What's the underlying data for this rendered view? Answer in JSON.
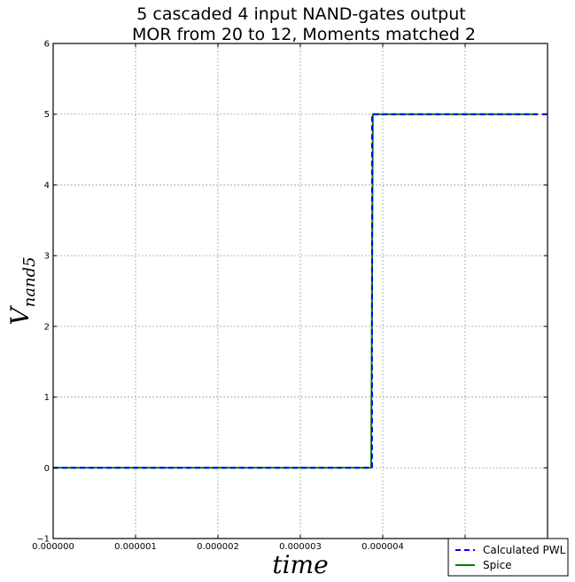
{
  "chart_data": {
    "type": "line",
    "title_line1": "5 cascaded 4 input NAND-gates     output",
    "title_line2": "MOR from 20 to 12, Moments matched 2",
    "xlabel": "time",
    "ylabel_main": "V",
    "ylabel_sub": "nand5",
    "xlim": [
      0,
      6e-06
    ],
    "ylim": [
      -1,
      6
    ],
    "x_ticks": [
      0,
      1e-06,
      2e-06,
      3e-06,
      4e-06,
      5e-06
    ],
    "x_tick_labels": [
      "0.000000",
      "0.000001",
      "0.000002",
      "0.000003",
      "0.000004",
      ""
    ],
    "y_ticks": [
      -1,
      0,
      1,
      2,
      3,
      4,
      5,
      6
    ],
    "y_tick_labels": [
      "−1",
      "0",
      "1",
      "2",
      "3",
      "4",
      "5",
      "6"
    ],
    "grid": true,
    "legend_position": "bottom-right",
    "series": [
      {
        "name": "Calculated PWL",
        "color": "#0000ff",
        "style": "dashed",
        "points": [
          [
            0,
            0
          ],
          [
            3.87e-06,
            0
          ],
          [
            3.87e-06,
            5
          ],
          [
            6e-06,
            5
          ]
        ]
      },
      {
        "name": "Spice",
        "color": "#008000",
        "style": "solid",
        "points": [
          [
            0,
            0
          ],
          [
            3.86e-06,
            0
          ],
          [
            3.88e-06,
            5
          ],
          [
            5.87e-06,
            5
          ]
        ]
      }
    ]
  }
}
